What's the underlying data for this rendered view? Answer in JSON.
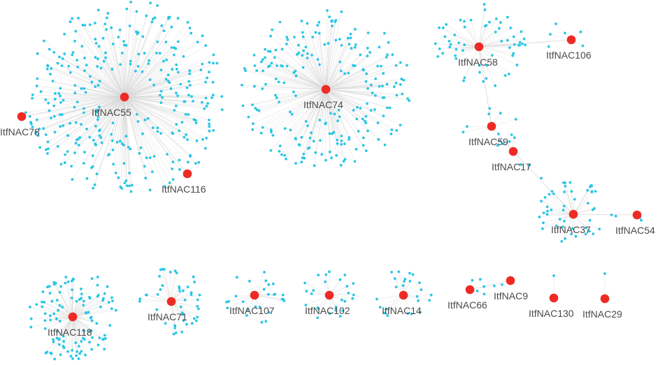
{
  "colors": {
    "hub": "#ee2a24",
    "target": "#29c6e6",
    "edge": "#d6d6d6",
    "label": "#4a4a4a"
  },
  "hubs": [
    {
      "id": "ItfNAC55",
      "label": "ItfNAC55"
    },
    {
      "id": "ItfNAC78",
      "label": "ItfNAC78"
    },
    {
      "id": "ItfNAC116",
      "label": "ItfNAC116"
    },
    {
      "id": "ItfNAC74",
      "label": "ItfNAC74"
    },
    {
      "id": "ItfNAC58",
      "label": "ItfNAC58"
    },
    {
      "id": "ItfNAC106",
      "label": "ItfNAC106"
    },
    {
      "id": "ItfNAC59",
      "label": "ItfNAC59"
    },
    {
      "id": "ItfNAC17",
      "label": "ItfNAC17"
    },
    {
      "id": "ItfNAC37",
      "label": "ItfNAC37"
    },
    {
      "id": "ItfNAC54",
      "label": "ItfNAC54"
    },
    {
      "id": "ItfNAC118",
      "label": "ItfNAC118"
    },
    {
      "id": "ItfNAC71",
      "label": "ItfNAC71"
    },
    {
      "id": "ItfNAC107",
      "label": "ItfNAC107"
    },
    {
      "id": "ItfNAC102",
      "label": "ItfNAC102"
    },
    {
      "id": "ItfNAC14",
      "label": "ItfNAC14"
    },
    {
      "id": "ItfNAC66",
      "label": "ItfNAC66"
    },
    {
      "id": "ItfNAC9",
      "label": "ItfNAC9"
    },
    {
      "id": "ItfNAC130",
      "label": "ItfNAC130"
    },
    {
      "id": "ItfNAC29",
      "label": "ItfNAC29"
    }
  ]
}
